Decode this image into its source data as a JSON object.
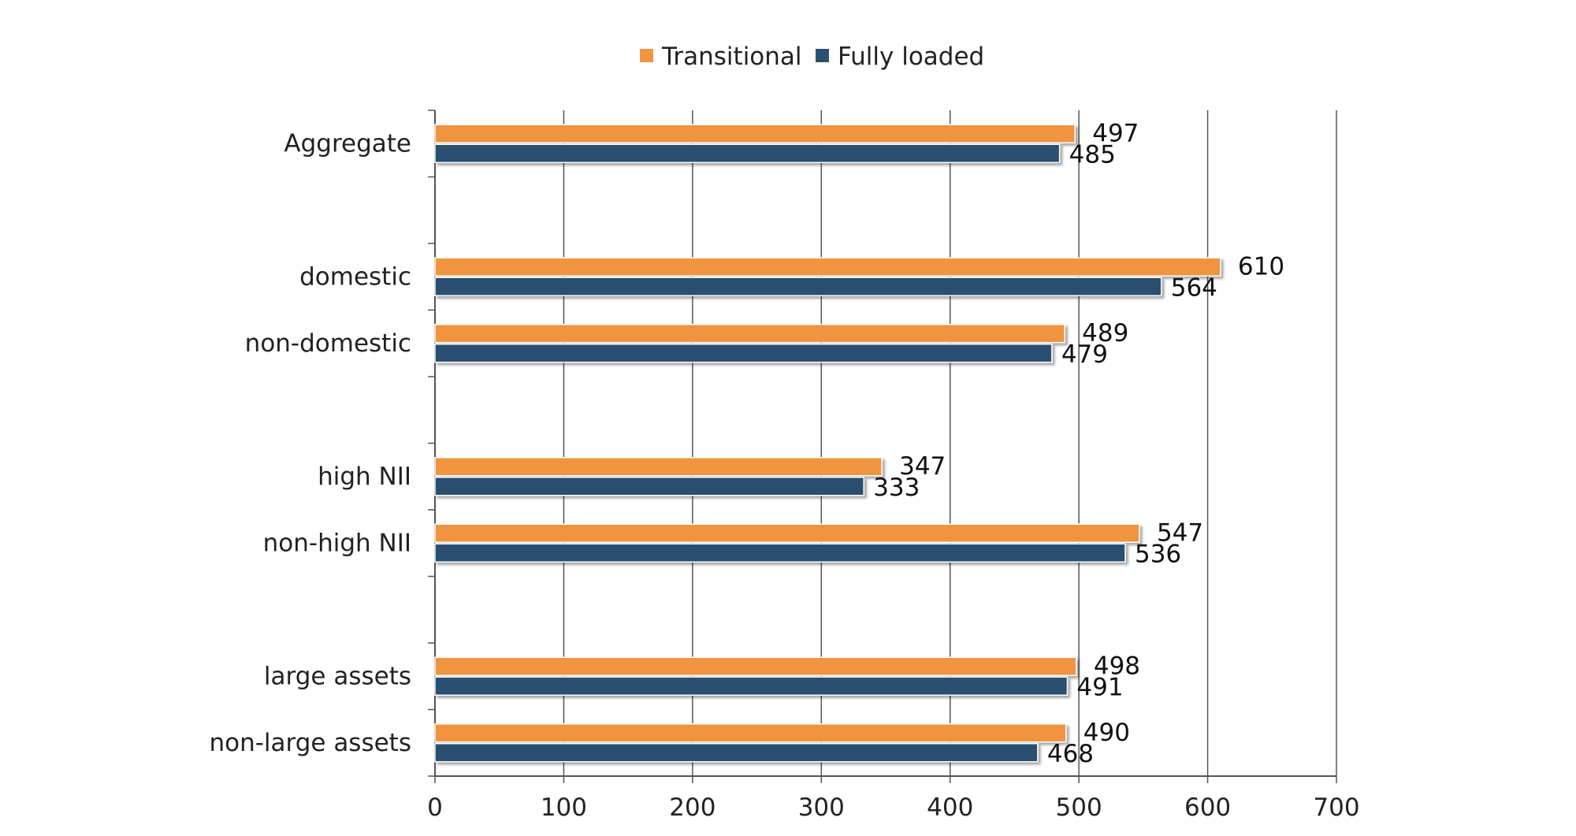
{
  "chart_data": {
    "type": "bar",
    "orientation": "horizontal",
    "categories": [
      "Aggregate",
      "domestic",
      "non-domestic",
      "high NII",
      "non-high NII",
      "large assets",
      "non-large assets"
    ],
    "groups": [
      [
        "Aggregate"
      ],
      [
        "domestic",
        "non-domestic"
      ],
      [
        "high NII",
        "non-high NII"
      ],
      [
        "large assets",
        "non-large assets"
      ]
    ],
    "series": [
      {
        "name": "Transitional",
        "color": "#f0943f",
        "values": [
          497,
          610,
          489,
          347,
          547,
          498,
          490
        ]
      },
      {
        "name": "Fully loaded",
        "color": "#2b5070",
        "values": [
          485,
          564,
          479,
          333,
          536,
          491,
          468
        ]
      }
    ],
    "xlim": [
      0,
      700
    ],
    "xticks": [
      0,
      100,
      200,
      300,
      400,
      500,
      600,
      700
    ],
    "title": "",
    "xlabel": "",
    "ylabel": "",
    "grid": "vertical",
    "legend_position": "top"
  }
}
